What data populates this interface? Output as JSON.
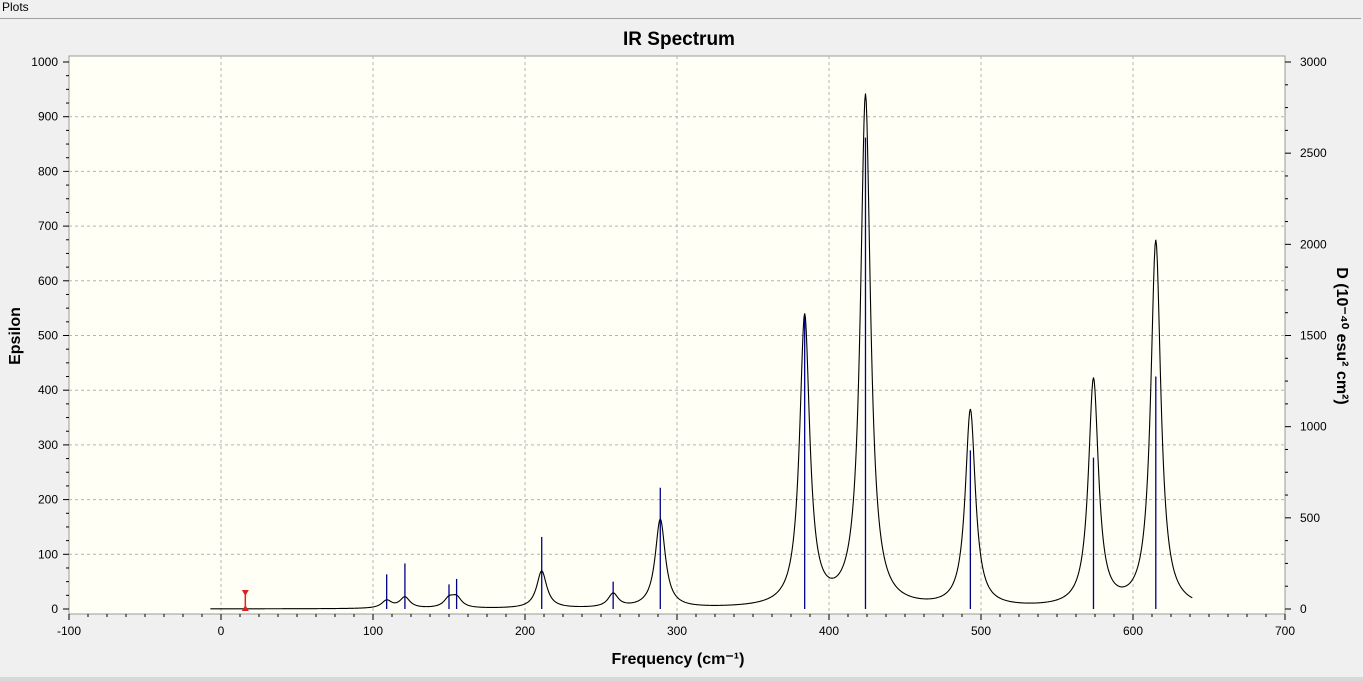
{
  "menu": {
    "plots_label": "Plots"
  },
  "colors": {
    "plot_background": "#fffff5",
    "curve": "#000000",
    "stick": "#00008b",
    "marker": "#e02020",
    "grid": "#b4b4b4"
  },
  "chart_data": {
    "type": "line",
    "title": "IR Spectrum",
    "xlabel": "Frequency (cm⁻¹)",
    "ylabel": "Epsilon",
    "y2label": "D (10⁻⁴⁰ esu² cm²)",
    "xlim": [
      -100,
      700
    ],
    "ylim": [
      0,
      1000
    ],
    "y2lim": [
      0,
      3000
    ],
    "xticks": [
      "-100",
      "0",
      "100",
      "200",
      "300",
      "400",
      "500",
      "600",
      "700"
    ],
    "yticks": [
      "0",
      "100",
      "200",
      "300",
      "400",
      "500",
      "600",
      "700",
      "800",
      "900",
      "1000"
    ],
    "y2ticks": [
      "0",
      "500",
      "1000",
      "1500",
      "2000",
      "2500",
      "3000"
    ],
    "grid": true,
    "curve_range": [
      -7,
      639
    ],
    "peaks": [
      {
        "x": 109,
        "height": 14
      },
      {
        "x": 121,
        "height": 20
      },
      {
        "x": 150,
        "height": 16
      },
      {
        "x": 155,
        "height": 18
      },
      {
        "x": 211,
        "height": 68
      },
      {
        "x": 258,
        "height": 25
      },
      {
        "x": 289,
        "height": 162
      },
      {
        "x": 384,
        "height": 530
      },
      {
        "x": 424,
        "height": 935
      },
      {
        "x": 493,
        "height": 360
      },
      {
        "x": 574,
        "height": 415
      },
      {
        "x": 615,
        "height": 670
      }
    ],
    "sticks": [
      {
        "x": 109,
        "d": 190
      },
      {
        "x": 121,
        "d": 250
      },
      {
        "x": 150,
        "d": 135
      },
      {
        "x": 155,
        "d": 165
      },
      {
        "x": 211,
        "d": 395
      },
      {
        "x": 258,
        "d": 150
      },
      {
        "x": 289,
        "d": 665
      },
      {
        "x": 384,
        "d": 1600
      },
      {
        "x": 424,
        "d": 2585
      },
      {
        "x": 493,
        "d": 870
      },
      {
        "x": 574,
        "d": 830
      },
      {
        "x": 615,
        "d": 1275
      }
    ],
    "marker_x": 16
  }
}
